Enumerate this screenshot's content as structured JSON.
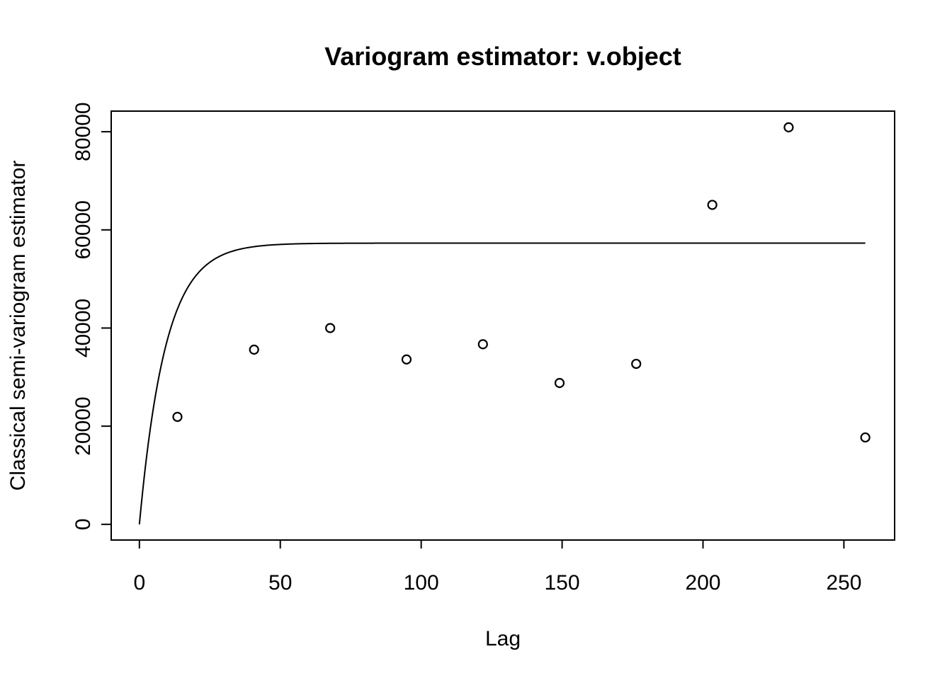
{
  "chart_data": {
    "type": "scatter",
    "title": "Variogram estimator: v.object",
    "xlabel": "Lag",
    "ylabel": "Classical semi-variogram estimator",
    "xlim": [
      -10,
      268
    ],
    "ylim": [
      -3200,
      84200
    ],
    "xticks": [
      0,
      50,
      100,
      150,
      200,
      250
    ],
    "yticks": [
      0,
      20000,
      40000,
      60000,
      80000
    ],
    "grid": false,
    "legend": "none",
    "points": [
      {
        "x": 13.5,
        "y": 21900
      },
      {
        "x": 40.7,
        "y": 35600
      },
      {
        "x": 67.7,
        "y": 40000
      },
      {
        "x": 94.8,
        "y": 33600
      },
      {
        "x": 121.9,
        "y": 36700
      },
      {
        "x": 149.1,
        "y": 28800
      },
      {
        "x": 176.3,
        "y": 32700
      },
      {
        "x": 203.3,
        "y": 65100
      },
      {
        "x": 230.4,
        "y": 80900
      },
      {
        "x": 257.6,
        "y": 17700
      }
    ],
    "fitted_model": {
      "type": "exponential",
      "nugget": 0,
      "sill": 57300,
      "range": 9.3,
      "x_max": 257.6
    }
  }
}
